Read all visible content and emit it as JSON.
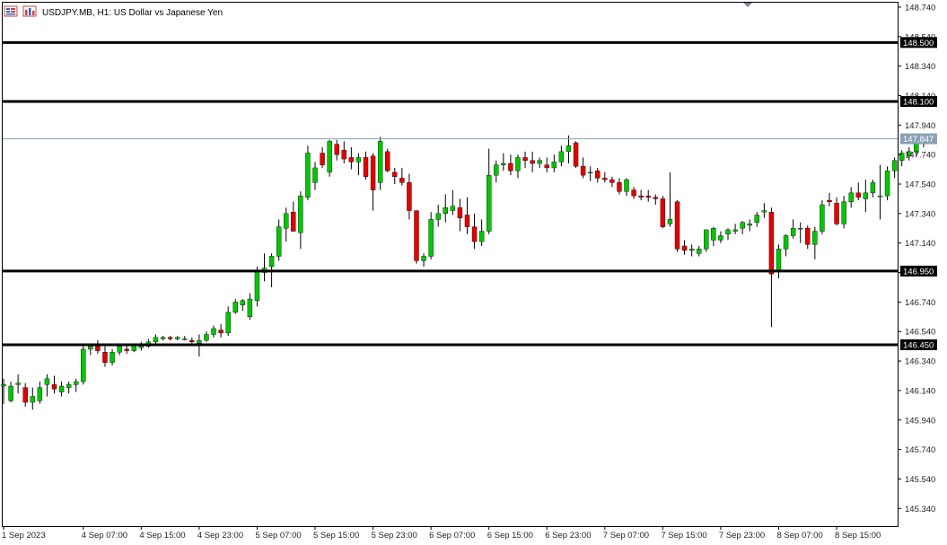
{
  "header": {
    "title": "USDJPY.MB, H1:  US Dollar vs Japanese Yen"
  },
  "icons": {
    "symbol_icon": "candles-icon",
    "chart_type_icon": "bar-chart-icon",
    "scroll_marker": "triangle-down-icon"
  },
  "colors": {
    "bull": "#00c800",
    "bear": "#e60000",
    "wick": "#000000",
    "level_line": "#000000",
    "current_price_line": "#8aa0b4",
    "current_price_bg": "#8aa0b4"
  },
  "chart_data": {
    "type": "candlestick",
    "title": "USDJPY.MB, H1:  US Dollar vs Japanese Yen",
    "ylim": [
      145.22,
      148.77
    ],
    "y_ticks": [
      "148.740",
      "148.540",
      "148.340",
      "148.140",
      "147.940",
      "147.740",
      "147.540",
      "147.340",
      "147.140",
      "146.940",
      "146.740",
      "146.540",
      "146.340",
      "146.140",
      "145.940",
      "145.740",
      "145.540",
      "145.340"
    ],
    "x_ticks": [
      {
        "label": "1 Sep 2023",
        "index": 0
      },
      {
        "label": "4 Sep 07:00",
        "index": 11
      },
      {
        "label": "4 Sep 15:00",
        "index": 19
      },
      {
        "label": "4 Sep 23:00",
        "index": 27
      },
      {
        "label": "5 Sep 07:00",
        "index": 35
      },
      {
        "label": "5 Sep 15:00",
        "index": 43
      },
      {
        "label": "5 Sep 23:00",
        "index": 51
      },
      {
        "label": "6 Sep 07:00",
        "index": 59
      },
      {
        "label": "6 Sep 15:00",
        "index": 67
      },
      {
        "label": "6 Sep 23:00",
        "index": 75
      },
      {
        "label": "7 Sep 07:00",
        "index": 83
      },
      {
        "label": "7 Sep 15:00",
        "index": 91
      },
      {
        "label": "7 Sep 23:00",
        "index": 99
      },
      {
        "label": "8 Sep 07:00",
        "index": 107
      },
      {
        "label": "8 Sep 15:00",
        "index": 115
      }
    ],
    "horizontal_levels": [
      {
        "label": "148.500",
        "value": 148.5
      },
      {
        "label": "148.100",
        "value": 148.1
      },
      {
        "label": "146.950",
        "value": 146.95
      },
      {
        "label": "146.450",
        "value": 146.45
      }
    ],
    "current_price": {
      "label": "147.847",
      "value": 147.847
    },
    "candles": [
      [
        146.17,
        146.22,
        146.05,
        146.18
      ],
      [
        146.07,
        146.2,
        146.06,
        146.17
      ],
      [
        146.18,
        146.25,
        146.12,
        146.19
      ],
      [
        146.16,
        146.19,
        146.03,
        146.06
      ],
      [
        146.06,
        146.16,
        146.01,
        146.1
      ],
      [
        146.07,
        146.2,
        146.05,
        146.16
      ],
      [
        146.18,
        146.25,
        146.1,
        146.22
      ],
      [
        146.18,
        146.24,
        146.12,
        146.15
      ],
      [
        146.13,
        146.2,
        146.1,
        146.17
      ],
      [
        146.16,
        146.2,
        146.12,
        146.18
      ],
      [
        146.18,
        146.22,
        146.13,
        146.2
      ],
      [
        146.2,
        146.45,
        146.18,
        146.42
      ],
      [
        146.42,
        146.46,
        146.38,
        146.44
      ],
      [
        146.44,
        146.48,
        146.39,
        146.41
      ],
      [
        146.4,
        146.44,
        146.3,
        146.33
      ],
      [
        146.33,
        146.42,
        146.31,
        146.4
      ],
      [
        146.4,
        146.46,
        146.38,
        146.44
      ],
      [
        146.42,
        146.46,
        146.39,
        146.41
      ],
      [
        146.41,
        146.46,
        146.4,
        146.45
      ],
      [
        146.43,
        146.47,
        146.41,
        146.44
      ],
      [
        146.44,
        146.49,
        146.43,
        146.47
      ],
      [
        146.47,
        146.52,
        146.45,
        146.5
      ],
      [
        146.49,
        146.51,
        146.48,
        146.5
      ],
      [
        146.5,
        146.51,
        146.48,
        146.49
      ],
      [
        146.49,
        146.51,
        146.48,
        146.5
      ],
      [
        146.49,
        146.51,
        146.48,
        146.49
      ],
      [
        146.48,
        146.5,
        146.46,
        146.47
      ],
      [
        146.46,
        146.52,
        146.37,
        146.48
      ],
      [
        146.48,
        146.54,
        146.47,
        146.52
      ],
      [
        146.52,
        146.58,
        146.5,
        146.56
      ],
      [
        146.55,
        146.59,
        146.5,
        146.53
      ],
      [
        146.53,
        146.71,
        146.51,
        146.67
      ],
      [
        146.67,
        146.76,
        146.66,
        146.74
      ],
      [
        146.72,
        146.76,
        146.68,
        146.75
      ],
      [
        146.64,
        146.8,
        146.62,
        146.76
      ],
      [
        146.75,
        146.98,
        146.71,
        146.95
      ],
      [
        146.94,
        147.07,
        146.88,
        146.97
      ],
      [
        146.98,
        147.07,
        146.84,
        147.05
      ],
      [
        147.05,
        147.3,
        147.02,
        147.25
      ],
      [
        147.24,
        147.38,
        147.15,
        147.34
      ],
      [
        147.35,
        147.42,
        147.22,
        147.22
      ],
      [
        147.21,
        147.49,
        147.1,
        147.46
      ],
      [
        147.45,
        147.8,
        147.43,
        147.75
      ],
      [
        147.55,
        147.69,
        147.5,
        147.65
      ],
      [
        147.75,
        147.79,
        147.65,
        147.67
      ],
      [
        147.62,
        147.84,
        147.59,
        147.83
      ],
      [
        147.81,
        147.84,
        147.7,
        147.74
      ],
      [
        147.77,
        147.83,
        147.68,
        147.71
      ],
      [
        147.72,
        147.79,
        147.64,
        147.69
      ],
      [
        147.69,
        147.75,
        147.6,
        147.72
      ],
      [
        147.72,
        147.76,
        147.57,
        147.59
      ],
      [
        147.73,
        147.75,
        147.36,
        147.5
      ],
      [
        147.55,
        147.86,
        147.5,
        147.83
      ],
      [
        147.76,
        147.78,
        147.62,
        147.63
      ],
      [
        147.62,
        147.65,
        147.54,
        147.59
      ],
      [
        147.58,
        147.65,
        147.53,
        147.55
      ],
      [
        147.55,
        147.61,
        147.3,
        147.36
      ],
      [
        147.36,
        147.36,
        147.0,
        147.02
      ],
      [
        147.02,
        147.07,
        146.98,
        147.05
      ],
      [
        147.05,
        147.35,
        147.03,
        147.3
      ],
      [
        147.3,
        147.4,
        147.25,
        147.34
      ],
      [
        147.34,
        147.47,
        147.28,
        147.38
      ],
      [
        147.36,
        147.5,
        147.33,
        147.39
      ],
      [
        147.38,
        147.44,
        147.22,
        147.31
      ],
      [
        147.33,
        147.45,
        147.2,
        147.25
      ],
      [
        147.25,
        147.34,
        147.1,
        147.15
      ],
      [
        147.15,
        147.3,
        147.12,
        147.22
      ],
      [
        147.22,
        147.78,
        147.2,
        147.6
      ],
      [
        147.6,
        147.7,
        147.55,
        147.67
      ],
      [
        147.67,
        147.75,
        147.63,
        147.68
      ],
      [
        147.68,
        147.74,
        147.6,
        147.63
      ],
      [
        147.63,
        147.74,
        147.58,
        147.72
      ],
      [
        147.72,
        147.76,
        147.65,
        147.7
      ],
      [
        147.7,
        147.76,
        147.62,
        147.68
      ],
      [
        147.68,
        147.72,
        147.65,
        147.7
      ],
      [
        147.67,
        147.72,
        147.62,
        147.65
      ],
      [
        147.65,
        147.74,
        147.62,
        147.69
      ],
      [
        147.69,
        147.8,
        147.66,
        147.76
      ],
      [
        147.76,
        147.87,
        147.68,
        147.8
      ],
      [
        147.82,
        147.83,
        147.65,
        147.66
      ],
      [
        147.66,
        147.72,
        147.58,
        147.6
      ],
      [
        147.62,
        147.66,
        147.56,
        147.62
      ],
      [
        147.63,
        147.65,
        147.55,
        147.58
      ],
      [
        147.58,
        147.62,
        147.55,
        147.57
      ],
      [
        147.57,
        147.59,
        147.52,
        147.55
      ],
      [
        147.55,
        147.58,
        147.47,
        147.49
      ],
      [
        147.49,
        147.58,
        147.46,
        147.57
      ],
      [
        147.5,
        147.52,
        147.44,
        147.46
      ],
      [
        147.46,
        147.5,
        147.43,
        147.45
      ],
      [
        147.46,
        147.5,
        147.42,
        147.45
      ],
      [
        147.45,
        147.47,
        147.4,
        147.44
      ],
      [
        147.44,
        147.46,
        147.24,
        147.25
      ],
      [
        147.27,
        147.62,
        147.25,
        147.3
      ],
      [
        147.42,
        147.43,
        147.08,
        147.1
      ],
      [
        147.12,
        147.16,
        147.06,
        147.09
      ],
      [
        147.09,
        147.13,
        147.05,
        147.1
      ],
      [
        147.07,
        147.12,
        147.05,
        147.1
      ],
      [
        147.1,
        147.23,
        147.08,
        147.23
      ],
      [
        147.16,
        147.25,
        147.12,
        147.24
      ],
      [
        147.16,
        147.22,
        147.14,
        147.19
      ],
      [
        147.2,
        147.24,
        147.16,
        147.23
      ],
      [
        147.22,
        147.27,
        147.2,
        147.23
      ],
      [
        147.24,
        147.29,
        147.2,
        147.28
      ],
      [
        147.26,
        147.3,
        147.22,
        147.27
      ],
      [
        147.28,
        147.35,
        147.25,
        147.33
      ],
      [
        147.35,
        147.41,
        147.31,
        147.36
      ],
      [
        147.35,
        147.38,
        146.57,
        146.93
      ],
      [
        146.95,
        147.13,
        146.9,
        147.1
      ],
      [
        147.1,
        147.2,
        147.05,
        147.19
      ],
      [
        147.19,
        147.3,
        147.17,
        147.24
      ],
      [
        147.24,
        147.28,
        147.14,
        147.24
      ],
      [
        147.24,
        147.26,
        147.1,
        147.13
      ],
      [
        147.13,
        147.25,
        147.03,
        147.22
      ],
      [
        147.22,
        147.43,
        147.2,
        147.4
      ],
      [
        147.43,
        147.48,
        147.39,
        147.42
      ],
      [
        147.41,
        147.45,
        147.26,
        147.27
      ],
      [
        147.27,
        147.46,
        147.24,
        147.42
      ],
      [
        147.42,
        147.52,
        147.38,
        147.48
      ],
      [
        147.48,
        147.55,
        147.43,
        147.45
      ],
      [
        147.44,
        147.57,
        147.35,
        147.48
      ],
      [
        147.48,
        147.57,
        147.45,
        147.55
      ],
      [
        147.46,
        147.67,
        147.3,
        147.46
      ],
      [
        147.46,
        147.66,
        147.43,
        147.63
      ],
      [
        147.63,
        147.72,
        147.58,
        147.7
      ],
      [
        147.7,
        147.77,
        147.66,
        147.75
      ],
      [
        147.73,
        147.79,
        147.7,
        147.76
      ],
      [
        147.76,
        147.83,
        147.73,
        147.82
      ],
      [
        147.82,
        147.87,
        147.79,
        147.85
      ]
    ]
  }
}
